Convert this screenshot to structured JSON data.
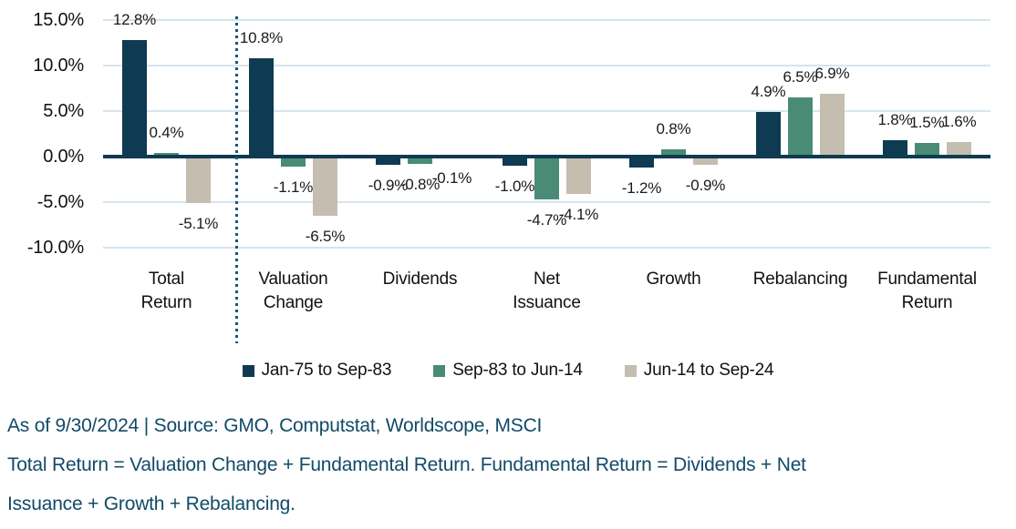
{
  "colors": {
    "navy": "#0e3a52",
    "green": "#4a8b75",
    "beige": "#c5bdb0",
    "gridline": "#d6e5ef",
    "zero_line": "#0e3a52",
    "separator": "#14587a",
    "axis_text": "#111111",
    "value_label_text": "#1a1a1a",
    "footnote_text": "#114a68"
  },
  "chart_data": {
    "type": "bar",
    "title": "",
    "xlabel": "",
    "ylabel": "",
    "categories": [
      "Total Return",
      "Valuation Change",
      "Dividends",
      "Net Issuance",
      "Growth",
      "Rebalancing",
      "Fundamental Return"
    ],
    "category_lines": [
      [
        "Total",
        "Return"
      ],
      [
        "Valuation",
        "Change"
      ],
      [
        "Dividends"
      ],
      [
        "Net",
        "Issuance"
      ],
      [
        "Growth"
      ],
      [
        "Rebalancing"
      ],
      [
        "Fundamental",
        "Return"
      ]
    ],
    "series": [
      {
        "name": "Jan-75 to Sep-83",
        "color_key": "navy",
        "values": [
          12.8,
          10.8,
          -0.9,
          -1.0,
          -1.2,
          4.9,
          1.8
        ]
      },
      {
        "name": "Sep-83 to Jun-14",
        "color_key": "green",
        "values": [
          0.4,
          -1.1,
          -0.8,
          -4.7,
          0.8,
          6.5,
          1.5
        ]
      },
      {
        "name": "Jun-14 to Sep-24",
        "color_key": "beige",
        "values": [
          -5.1,
          -6.5,
          -0.1,
          -4.1,
          -0.9,
          6.9,
          1.6
        ]
      }
    ],
    "value_labels": true,
    "value_label_decimals": 1,
    "value_label_suffix": "%",
    "y_axis": {
      "ticks": [
        15,
        10,
        5,
        0,
        -5,
        -10
      ],
      "tick_decimals": 1,
      "tick_suffix": "%",
      "range": [
        -10,
        15
      ]
    },
    "grid": true,
    "legend_position": "bottom",
    "annotations": [
      {
        "type": "dotted-vertical-separator",
        "after_category": "Total Return"
      }
    ]
  },
  "footnote": {
    "lines": [
      "As of 9/30/2024 | Source: GMO, Computstat, Worldscope, MSCI",
      "Total Return = Valuation Change + Fundamental Return. Fundamental Return = Dividends + Net",
      "Issuance + Growth + Rebalancing."
    ]
  }
}
